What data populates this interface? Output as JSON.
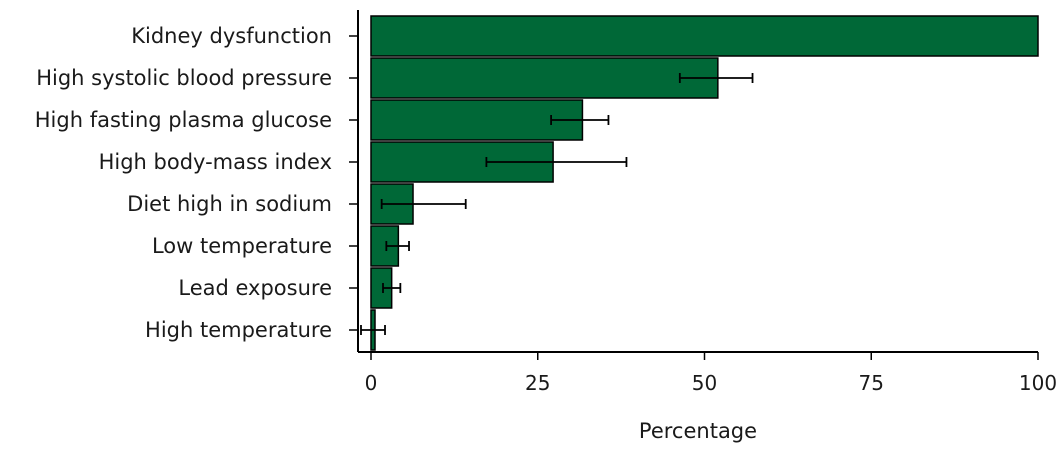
{
  "colors": {
    "bar_fill": "#006837",
    "bar_stroke": "#000000",
    "axis": "#000000",
    "error_bar": "#000000",
    "text": "#1a1a1a"
  },
  "chart_data": {
    "type": "bar",
    "orientation": "horizontal",
    "title": "",
    "xlabel": "Percentage",
    "ylabel": "",
    "xlim": [
      -2,
      100
    ],
    "xticks": [
      0,
      25,
      50,
      75,
      100
    ],
    "xtick_labels": [
      "0",
      "25",
      "50",
      "75",
      "100"
    ],
    "grid": false,
    "legend": "none",
    "categories": [
      "Kidney dysfunction",
      "High systolic blood pressure",
      "High fasting plasma glucose",
      "High body-mass index",
      "Diet high in sodium",
      "Low temperature",
      "Lead exposure",
      "High temperature"
    ],
    "values": [
      100,
      52,
      31.7,
      27.3,
      6.3,
      4.1,
      3.1,
      0.6
    ],
    "error_low": [
      null,
      46.3,
      27,
      17.3,
      1.6,
      2.3,
      1.8,
      -1.5
    ],
    "error_high": [
      null,
      57.2,
      35.6,
      38.3,
      14.2,
      5.7,
      4.4,
      2.1
    ]
  }
}
